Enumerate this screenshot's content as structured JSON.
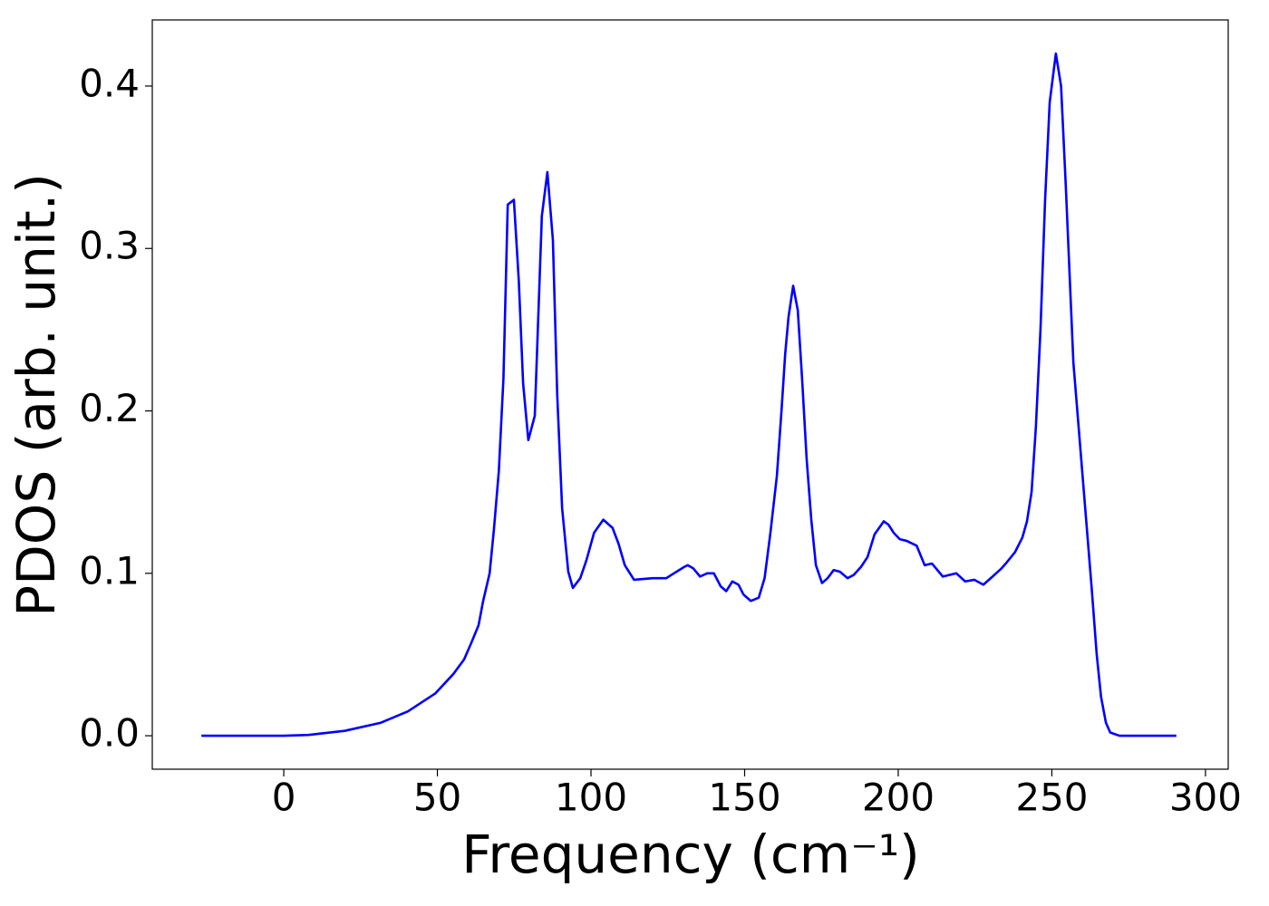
{
  "chart_data": {
    "type": "line",
    "xlabel": "Frequency (cm⁻¹)",
    "ylabel": "PDOS (arb. unit.)",
    "xlim": [
      -42.8,
      307.4
    ],
    "ylim": [
      -0.0206,
      0.4407
    ],
    "xticks": [
      0,
      50,
      100,
      150,
      200,
      250,
      300
    ],
    "yticks": [
      {
        "value": 0,
        "label": "0.0"
      },
      0.1,
      0.2,
      0.3,
      0.4
    ],
    "series": [
      {
        "color": "#0000ff",
        "x": [
          -26.8,
          0,
          8,
          19.8,
          31.6,
          40.4,
          49.3,
          55.2,
          58.7,
          61,
          63.4,
          64.9,
          67,
          68.4,
          70,
          71.5,
          72.9,
          74.9,
          76.5,
          77.9,
          79.6,
          81.7,
          84,
          85.8,
          87.6,
          89,
          90.6,
          92.6,
          94.1,
          96.5,
          98.5,
          101,
          104,
          107,
          109,
          111,
          114,
          120,
          124.5,
          127,
          130.4,
          131.5,
          133.3,
          135.5,
          137.8,
          140,
          142.2,
          144,
          146,
          148,
          149.6,
          152,
          154.6,
          156.5,
          158.4,
          160.5,
          162,
          163.2,
          164.3,
          165.8,
          167.3,
          168.7,
          170.2,
          171.7,
          173.2,
          175.2,
          177,
          179,
          181,
          183.5,
          185.5,
          187.9,
          190,
          192.3,
          195.3,
          196.8,
          198.5,
          200.5,
          202.7,
          206,
          208.6,
          211,
          214.5,
          218.9,
          221.8,
          224.8,
          227.7,
          230.7,
          233.6,
          235,
          238,
          240.4,
          241.9,
          243.4,
          244.8,
          246.3,
          247.8,
          249.3,
          251.3,
          253,
          254.5,
          257,
          260,
          263,
          264.6,
          266,
          267.6,
          269,
          272,
          290.5
        ],
        "values": [
          0,
          0,
          0.0005,
          0.003,
          0.008,
          0.015,
          0.026,
          0.038,
          0.047,
          0.057,
          0.068,
          0.083,
          0.1,
          0.127,
          0.163,
          0.22,
          0.327,
          0.33,
          0.28,
          0.217,
          0.182,
          0.197,
          0.32,
          0.347,
          0.305,
          0.21,
          0.14,
          0.101,
          0.091,
          0.097,
          0.108,
          0.125,
          0.133,
          0.128,
          0.118,
          0.105,
          0.096,
          0.097,
          0.097,
          0.1,
          0.104,
          0.105,
          0.103,
          0.098,
          0.1,
          0.1,
          0.092,
          0.089,
          0.095,
          0.093,
          0.087,
          0.083,
          0.085,
          0.097,
          0.125,
          0.16,
          0.2,
          0.235,
          0.258,
          0.277,
          0.262,
          0.22,
          0.17,
          0.133,
          0.105,
          0.094,
          0.097,
          0.102,
          0.101,
          0.097,
          0.099,
          0.104,
          0.11,
          0.124,
          0.132,
          0.13,
          0.125,
          0.121,
          0.12,
          0.117,
          0.105,
          0.106,
          0.098,
          0.1,
          0.095,
          0.096,
          0.093,
          0.098,
          0.103,
          0.106,
          0.113,
          0.122,
          0.132,
          0.15,
          0.19,
          0.25,
          0.33,
          0.39,
          0.42,
          0.4,
          0.34,
          0.23,
          0.16,
          0.09,
          0.05,
          0.024,
          0.008,
          0.002,
          0,
          0
        ]
      }
    ]
  }
}
